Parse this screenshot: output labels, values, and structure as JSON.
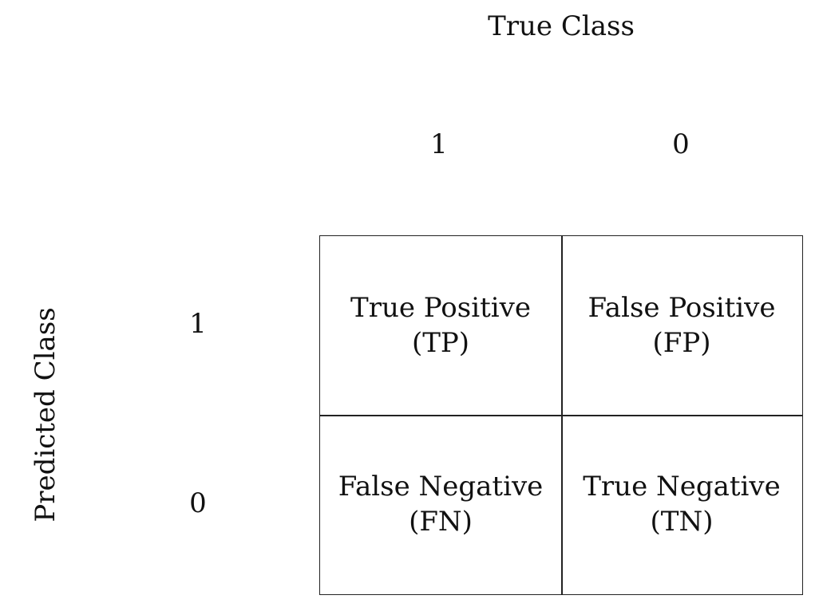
{
  "diagram": {
    "top_axis_title": "True Class",
    "left_axis_title": "Predicted Class",
    "column_labels": [
      "1",
      "0"
    ],
    "row_labels": [
      "1",
      "0"
    ],
    "cells": [
      {
        "name": "True Positive",
        "abbr": "(TP)"
      },
      {
        "name": "False Positive",
        "abbr": "(FP)"
      },
      {
        "name": "False Negative",
        "abbr": "(FN)"
      },
      {
        "name": "True Negative",
        "abbr": "(TN)"
      }
    ]
  }
}
